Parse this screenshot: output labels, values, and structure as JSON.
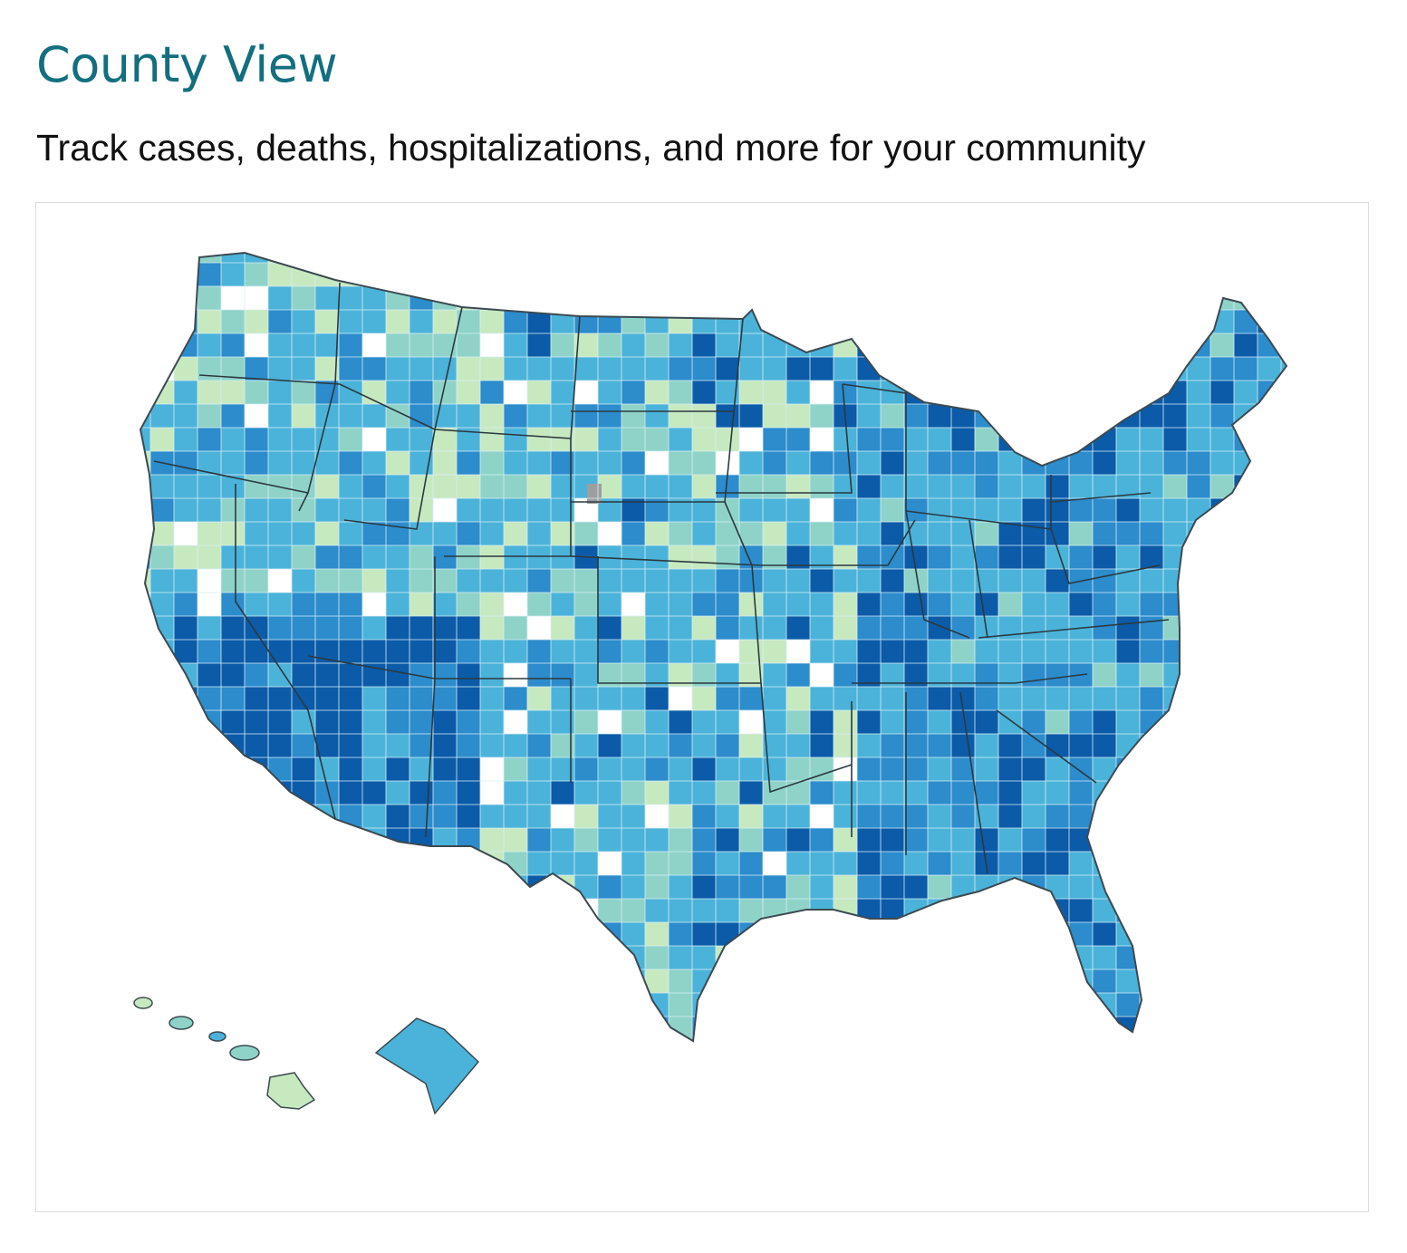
{
  "header": {
    "title": "County View",
    "subtitle": "Track cases, deaths, hospitalizations, and more for your community"
  },
  "map": {
    "type": "choropleth",
    "region": "United States counties",
    "palette": [
      "#ffffff",
      "#c7e9c0",
      "#8fd3c8",
      "#4bb3d9",
      "#2c8ccc",
      "#0b5ba8"
    ],
    "no_data_color": "#9e9e9e"
  }
}
